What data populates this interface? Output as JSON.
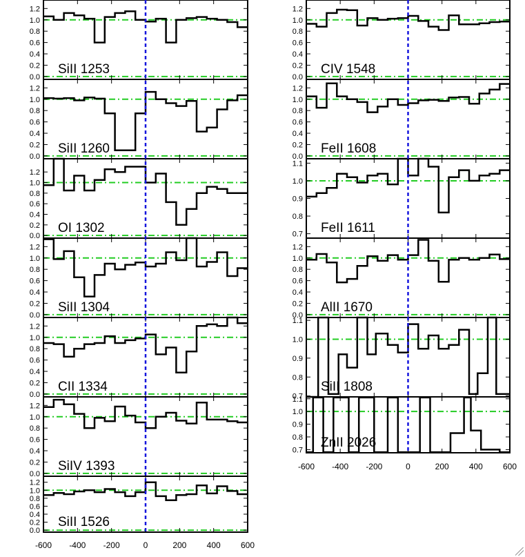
{
  "chart_data": {
    "type": "line",
    "step": true,
    "x_axis": {
      "range": [
        -600,
        600
      ],
      "ticks": [
        -600,
        -400,
        -200,
        0,
        200,
        400,
        600
      ]
    },
    "reference_line_y": 1.0,
    "velocity_marker_x": 0,
    "colors": {
      "flux": "#000000",
      "reference": "#22cc22",
      "velocity_marker": "#1515dd"
    },
    "panels": [
      {
        "label": "SiII 1253",
        "column": "left",
        "ylim": [
          -0.05,
          1.35
        ],
        "yticks": [
          "0.0",
          "0.2",
          "0.4",
          "0.6",
          "0.8",
          "1.0",
          "1.2"
        ],
        "x": [
          -600,
          -540,
          -480,
          -420,
          -360,
          -300,
          -240,
          -180,
          -120,
          -60,
          0,
          60,
          120,
          180,
          240,
          300,
          360,
          420,
          480,
          540
        ],
        "y": [
          1.06,
          1.0,
          1.12,
          1.08,
          1.02,
          0.6,
          1.05,
          1.12,
          1.15,
          1.0,
          0.97,
          1.02,
          0.6,
          1.0,
          1.03,
          1.05,
          1.02,
          1.0,
          0.96,
          0.87
        ]
      },
      {
        "label": "SiII 1260",
        "column": "left",
        "ylim": [
          -0.05,
          1.35
        ],
        "yticks": [
          "0.0",
          "0.2",
          "0.4",
          "0.6",
          "0.8",
          "1.0",
          "1.2"
        ],
        "x": [
          -600,
          -540,
          -480,
          -420,
          -360,
          -300,
          -240,
          -180,
          -120,
          -60,
          0,
          60,
          120,
          180,
          240,
          300,
          360,
          420,
          480,
          540
        ],
        "y": [
          1.02,
          1.01,
          1.02,
          0.98,
          1.03,
          1.01,
          0.75,
          0.1,
          0.1,
          0.75,
          1.13,
          1.0,
          0.93,
          0.88,
          0.97,
          0.43,
          0.5,
          0.82,
          0.98,
          1.07
        ]
      },
      {
        "label": "OI 1302",
        "column": "left",
        "ylim": [
          -0.05,
          1.45
        ],
        "yticks": [
          "0.0",
          "0.2",
          "0.4",
          "0.6",
          "0.8",
          "1.0",
          "1.2"
        ],
        "x": [
          -600,
          -540,
          -480,
          -420,
          -360,
          -300,
          -240,
          -180,
          -120,
          -60,
          0,
          60,
          120,
          180,
          240,
          300,
          360,
          420,
          480,
          540
        ],
        "y": [
          0.95,
          1.45,
          0.85,
          1.13,
          0.85,
          1.05,
          1.25,
          1.2,
          1.3,
          1.3,
          1.0,
          1.17,
          0.63,
          0.2,
          0.5,
          0.8,
          0.92,
          0.88,
          0.8,
          0.8
        ]
      },
      {
        "label": "SiII 1304",
        "column": "left",
        "ylim": [
          -0.05,
          1.35
        ],
        "yticks": [
          "0.0",
          "0.2",
          "0.4",
          "0.6",
          "0.8",
          "1.0",
          "1.2"
        ],
        "x": [
          -600,
          -540,
          -480,
          -420,
          -360,
          -300,
          -240,
          -180,
          -120,
          -60,
          0,
          60,
          120,
          180,
          240,
          300,
          360,
          420,
          480,
          540
        ],
        "y": [
          1.33,
          0.98,
          1.12,
          0.66,
          0.32,
          0.7,
          0.9,
          0.8,
          0.88,
          0.92,
          0.85,
          0.9,
          1.1,
          0.96,
          1.38,
          0.85,
          0.93,
          1.1,
          0.68,
          0.82
        ]
      },
      {
        "label": "CII 1334",
        "column": "left",
        "ylim": [
          -0.05,
          1.35
        ],
        "yticks": [
          "0.0",
          "0.2",
          "0.4",
          "0.6",
          "0.8",
          "1.0",
          "1.2"
        ],
        "x": [
          -600,
          -540,
          -480,
          -420,
          -360,
          -300,
          -240,
          -180,
          -120,
          -60,
          0,
          60,
          120,
          180,
          240,
          300,
          360,
          420,
          480,
          540
        ],
        "y": [
          0.9,
          0.88,
          0.66,
          0.8,
          0.88,
          0.9,
          1.02,
          0.9,
          0.95,
          0.98,
          1.05,
          0.7,
          0.82,
          0.38,
          0.75,
          1.2,
          1.23,
          1.2,
          1.37,
          1.25
        ]
      },
      {
        "label": "SiIV 1393",
        "column": "left",
        "ylim": [
          -0.05,
          1.35
        ],
        "yticks": [
          "0.0",
          "0.2",
          "0.4",
          "0.6",
          "0.8",
          "1.0",
          "1.2"
        ],
        "x": [
          -600,
          -540,
          -480,
          -420,
          -360,
          -300,
          -240,
          -180,
          -120,
          -60,
          0,
          60,
          120,
          180,
          240,
          300,
          360,
          420,
          480,
          540
        ],
        "y": [
          1.17,
          1.3,
          1.22,
          1.05,
          0.8,
          0.98,
          0.92,
          1.18,
          1.02,
          0.9,
          0.8,
          1.0,
          1.07,
          0.93,
          0.88,
          1.25,
          0.95,
          0.95,
          0.92,
          0.9
        ]
      },
      {
        "label": "SiII 1526",
        "column": "left",
        "ylim": [
          -0.05,
          1.35
        ],
        "yticks": [
          "0.0",
          "0.2",
          "0.4",
          "0.6",
          "0.8",
          "1.0",
          "1.2"
        ],
        "x": [
          -600,
          -540,
          -480,
          -420,
          -360,
          -300,
          -240,
          -180,
          -120,
          -60,
          0,
          60,
          120,
          180,
          240,
          300,
          360,
          420,
          480,
          540
        ],
        "y": [
          0.88,
          0.93,
          0.9,
          0.97,
          1.0,
          0.95,
          1.03,
          0.95,
          0.85,
          0.95,
          1.2,
          0.85,
          0.75,
          0.88,
          0.9,
          1.12,
          0.92,
          1.1,
          0.98,
          0.9
        ]
      },
      {
        "label": "CIV 1548",
        "column": "right",
        "ylim": [
          -0.05,
          1.35
        ],
        "yticks": [
          "0.0",
          "0.2",
          "0.4",
          "0.6",
          "0.8",
          "1.0",
          "1.2"
        ],
        "x": [
          -600,
          -540,
          -480,
          -420,
          -360,
          -300,
          -240,
          -180,
          -120,
          -60,
          0,
          60,
          120,
          180,
          240,
          300,
          360,
          420,
          480,
          540
        ],
        "y": [
          0.93,
          0.88,
          1.12,
          1.18,
          1.17,
          0.9,
          1.03,
          1.0,
          1.02,
          1.03,
          1.07,
          0.98,
          0.88,
          0.82,
          1.08,
          0.92,
          0.92,
          0.94,
          0.96,
          0.97
        ]
      },
      {
        "label": "FeII 1608",
        "column": "right",
        "ylim": [
          -0.05,
          1.35
        ],
        "yticks": [
          "0.0",
          "0.2",
          "0.4",
          "0.6",
          "0.8",
          "1.0",
          "1.2"
        ],
        "x": [
          -600,
          -540,
          -480,
          -420,
          -360,
          -300,
          -240,
          -180,
          -120,
          -60,
          0,
          60,
          120,
          180,
          240,
          300,
          360,
          420,
          480,
          540
        ],
        "y": [
          1.05,
          0.85,
          1.28,
          1.05,
          1.0,
          0.95,
          0.77,
          0.87,
          1.0,
          0.9,
          0.93,
          0.98,
          0.99,
          0.97,
          1.03,
          1.04,
          0.92,
          1.1,
          1.17,
          1.27
        ]
      },
      {
        "label": "FeII 1611",
        "column": "right",
        "ylim": [
          0.675,
          1.125
        ],
        "yticks": [
          "0.7",
          "0.8",
          "0.9",
          "1.0",
          "1.1"
        ],
        "x": [
          -600,
          -540,
          -480,
          -420,
          -360,
          -300,
          -240,
          -180,
          -120,
          -60,
          0,
          60,
          120,
          180,
          240,
          300,
          360,
          420,
          480,
          540
        ],
        "y": [
          0.91,
          0.93,
          0.96,
          1.04,
          1.02,
          0.99,
          1.03,
          1.04,
          0.98,
          1.13,
          1.03,
          1.13,
          1.08,
          0.82,
          1.02,
          1.06,
          1.0,
          1.03,
          1.04,
          1.06
        ]
      },
      {
        "label": "AlII 1670",
        "column": "right",
        "ylim": [
          -0.05,
          1.35
        ],
        "yticks": [
          "0.0",
          "0.2",
          "0.4",
          "0.6",
          "0.8",
          "1.0",
          "1.2"
        ],
        "x": [
          -600,
          -540,
          -480,
          -420,
          -360,
          -300,
          -240,
          -180,
          -120,
          -60,
          0,
          60,
          120,
          180,
          240,
          300,
          360,
          420,
          480,
          540
        ],
        "y": [
          0.97,
          1.07,
          0.92,
          0.57,
          0.63,
          0.86,
          1.03,
          0.95,
          1.05,
          0.97,
          1.05,
          1.32,
          0.95,
          0.58,
          0.97,
          1.0,
          0.97,
          1.0,
          1.06,
          0.98
        ]
      },
      {
        "label": "SiII 1808",
        "column": "right",
        "ylim": [
          0.695,
          1.115
        ],
        "yticks": [
          "0.7",
          "0.8",
          "0.9",
          "1.0",
          "1.1"
        ],
        "x": [
          -600,
          -530,
          -470,
          -410,
          -360,
          -300,
          -240,
          -190,
          -120,
          -60,
          0,
          60,
          120,
          180,
          240,
          300,
          360,
          410,
          470,
          520,
          580
        ],
        "y": [
          0.69,
          1.13,
          0.71,
          0.92,
          0.85,
          1.13,
          0.92,
          1.03,
          0.97,
          0.93,
          1.08,
          0.95,
          1.02,
          0.95,
          0.97,
          1.05,
          0.71,
          0.82,
          1.13,
          0.71,
          0.71
        ]
      },
      {
        "label": "ZnII 2026",
        "column": "right",
        "ylim": [
          0.675,
          1.115
        ],
        "yticks": [
          "0.7",
          "0.8",
          "0.9",
          "1.0",
          "1.1"
        ],
        "x": [
          -600,
          -560,
          -500,
          -440,
          -350,
          -290,
          -200,
          -120,
          -60,
          0,
          70,
          130,
          200,
          250,
          330,
          370,
          430,
          490,
          540,
          580
        ],
        "y": [
          0.68,
          1.11,
          0.68,
          1.11,
          0.68,
          1.11,
          0.68,
          1.11,
          0.68,
          0.68,
          1.11,
          0.68,
          0.68,
          0.83,
          1.11,
          0.85,
          0.7,
          0.7,
          0.68,
          0.68
        ]
      }
    ]
  }
}
